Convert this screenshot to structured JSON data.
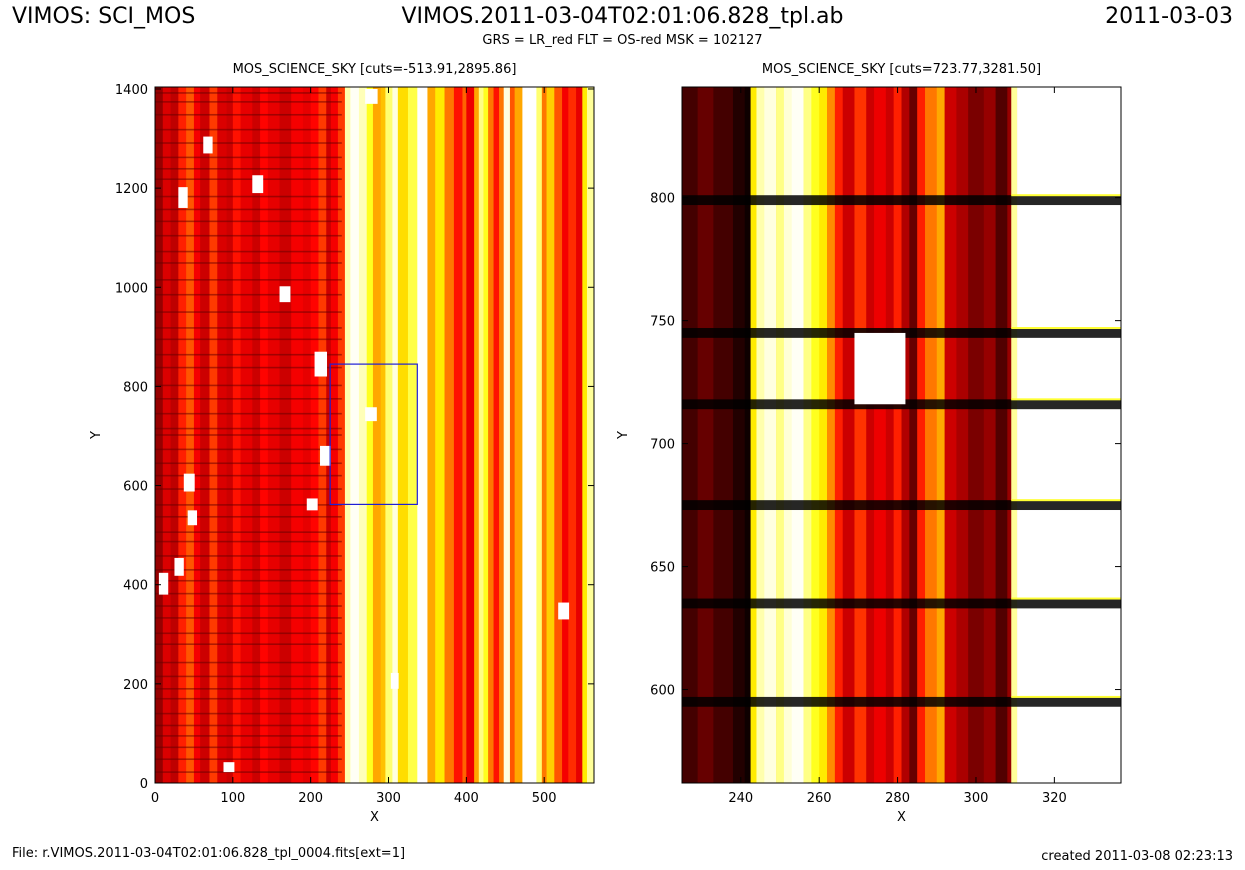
{
  "header": {
    "left": "VIMOS: SCI_MOS",
    "center": "VIMOS.2011-03-04T02:01:06.828_tpl.ab",
    "right": "2011-03-03",
    "subtitle": "GRS = LR_red FLT = OS-red MSK = 102127"
  },
  "footer": {
    "left": "File: r.VIMOS.2011-03-04T02:01:06.828_tpl_0004.fits[ext=1]",
    "right": "created 2011-03-08 02:23:13"
  },
  "chart_data": [
    {
      "type": "heatmap",
      "title": "MOS_SCIENCE_SKY [cuts=-513.91,2895.86]",
      "xlabel": "X",
      "ylabel": "Y",
      "xlim": [
        0,
        564
      ],
      "ylim": [
        0,
        1404
      ],
      "xticks": [
        0,
        100,
        200,
        300,
        400,
        500
      ],
      "yticks": [
        0,
        200,
        400,
        600,
        800,
        1000,
        1200,
        1400
      ],
      "colormap": "hot",
      "cuts": [
        -513.91,
        2895.86
      ],
      "zoom_box": {
        "x": [
          225,
          337
        ],
        "y": [
          562,
          845
        ],
        "color": "#1f1fd6"
      },
      "column_bands": [
        [
          0,
          10,
          0.22
        ],
        [
          10,
          20,
          0.32
        ],
        [
          20,
          30,
          0.28
        ],
        [
          30,
          40,
          0.42
        ],
        [
          40,
          50,
          0.5
        ],
        [
          50,
          58,
          0.36
        ],
        [
          58,
          70,
          0.3
        ],
        [
          70,
          80,
          0.46
        ],
        [
          80,
          92,
          0.32
        ],
        [
          92,
          100,
          0.3
        ],
        [
          100,
          110,
          0.4
        ],
        [
          110,
          125,
          0.34
        ],
        [
          125,
          135,
          0.3
        ],
        [
          135,
          145,
          0.38
        ],
        [
          145,
          160,
          0.34
        ],
        [
          160,
          175,
          0.3
        ],
        [
          175,
          190,
          0.36
        ],
        [
          190,
          200,
          0.34
        ],
        [
          200,
          210,
          0.38
        ],
        [
          210,
          220,
          0.46
        ],
        [
          220,
          226,
          0.3
        ],
        [
          226,
          235,
          0.36
        ],
        [
          235,
          244,
          0.46
        ],
        [
          244,
          251,
          0.92
        ],
        [
          251,
          262,
          0.99
        ],
        [
          262,
          272,
          0.93
        ],
        [
          272,
          280,
          0.78
        ],
        [
          280,
          290,
          0.62
        ],
        [
          290,
          296,
          0.66
        ],
        [
          296,
          305,
          0.86
        ],
        [
          305,
          312,
          0.97
        ],
        [
          312,
          325,
          0.7
        ],
        [
          325,
          337,
          0.82
        ],
        [
          337,
          350,
          1.0
        ],
        [
          350,
          360,
          0.62
        ],
        [
          360,
          372,
          0.72
        ],
        [
          372,
          384,
          0.55
        ],
        [
          384,
          395,
          0.4
        ],
        [
          395,
          400,
          0.52
        ],
        [
          400,
          410,
          0.35
        ],
        [
          410,
          416,
          0.62
        ],
        [
          416,
          422,
          0.88
        ],
        [
          422,
          428,
          0.78
        ],
        [
          428,
          435,
          0.55
        ],
        [
          435,
          442,
          0.4
        ],
        [
          442,
          448,
          0.55
        ],
        [
          448,
          456,
          0.97
        ],
        [
          456,
          462,
          0.5
        ],
        [
          462,
          472,
          0.62
        ],
        [
          472,
          490,
          1.0
        ],
        [
          490,
          497,
          0.86
        ],
        [
          497,
          503,
          0.55
        ],
        [
          503,
          513,
          0.68
        ],
        [
          513,
          523,
          0.5
        ],
        [
          523,
          531,
          0.36
        ],
        [
          531,
          541,
          0.44
        ],
        [
          541,
          549,
          0.34
        ],
        [
          549,
          555,
          0.72
        ],
        [
          555,
          564,
          0.9
        ]
      ],
      "row_lines": [
        22,
        48,
        72,
        95,
        116,
        140,
        170,
        190,
        215,
        243,
        280,
        302,
        333,
        357,
        382,
        408,
        430,
        458,
        487,
        506,
        537,
        561,
        593,
        620,
        645,
        673,
        702,
        715,
        745,
        775,
        802,
        838,
        864,
        895,
        918,
        950,
        985,
        1015,
        1049,
        1072,
        1104,
        1133,
        1157,
        1183,
        1218,
        1239,
        1262,
        1291,
        1318,
        1348,
        1374,
        1392
      ],
      "hot_spots": [
        [
          88,
          22,
          14,
          20
        ],
        [
          5,
          380,
          12,
          44
        ],
        [
          25,
          418,
          12,
          36
        ],
        [
          42,
          520,
          12,
          30
        ],
        [
          37,
          588,
          14,
          36
        ],
        [
          195,
          550,
          14,
          24
        ],
        [
          212,
          640,
          14,
          40
        ],
        [
          205,
          820,
          16,
          50
        ],
        [
          270,
          730,
          15,
          28
        ],
        [
          303,
          190,
          10,
          32
        ],
        [
          125,
          1190,
          14,
          36
        ],
        [
          160,
          970,
          14,
          32
        ],
        [
          30,
          1160,
          12,
          42
        ],
        [
          62,
          1270,
          12,
          34
        ],
        [
          518,
          330,
          14,
          34
        ],
        [
          270,
          1370,
          16,
          30
        ]
      ]
    },
    {
      "type": "heatmap",
      "title": "MOS_SCIENCE_SKY [cuts=723.77,3281.50]",
      "xlabel": "X",
      "ylabel": "Y",
      "xlim": [
        225,
        337
      ],
      "ylim": [
        562,
        845
      ],
      "xticks": [
        240,
        260,
        280,
        300,
        320
      ],
      "yticks": [
        600,
        650,
        700,
        750,
        800
      ],
      "colormap": "hot",
      "cuts": [
        723.77,
        3281.5
      ],
      "column_bands": [
        [
          225,
          229,
          0.1
        ],
        [
          229,
          233,
          0.15
        ],
        [
          233,
          238,
          0.1
        ],
        [
          238,
          241,
          0.05
        ],
        [
          241,
          242.5,
          0.02
        ],
        [
          242.5,
          244,
          0.72
        ],
        [
          244,
          246,
          0.92
        ],
        [
          246,
          249,
          0.97
        ],
        [
          249,
          251,
          0.88
        ],
        [
          251,
          253,
          0.96
        ],
        [
          253,
          256,
          0.99
        ],
        [
          256,
          258,
          0.88
        ],
        [
          258,
          260,
          0.78
        ],
        [
          260,
          262,
          0.72
        ],
        [
          262,
          264,
          0.58
        ],
        [
          264,
          266,
          0.42
        ],
        [
          266,
          269,
          0.3
        ],
        [
          269,
          272,
          0.45
        ],
        [
          272,
          274,
          0.3
        ],
        [
          274,
          277,
          0.35
        ],
        [
          277,
          279,
          0.3
        ],
        [
          279,
          281,
          0.42
        ],
        [
          281,
          283,
          0.26
        ],
        [
          283,
          285,
          0.15
        ],
        [
          285,
          287,
          0.42
        ],
        [
          287,
          290,
          0.55
        ],
        [
          290,
          292,
          0.62
        ],
        [
          292,
          295,
          0.3
        ],
        [
          295,
          298,
          0.25
        ],
        [
          298,
          302,
          0.18
        ],
        [
          302,
          305,
          0.22
        ],
        [
          305,
          308,
          0.12
        ],
        [
          308,
          309,
          0.22
        ],
        [
          309,
          310.5,
          0.9
        ],
        [
          310.5,
          313,
          1.0
        ],
        [
          313,
          337,
          1.0
        ]
      ],
      "row_bands": [
        [
          593,
          597,
          0.0
        ],
        [
          633,
          637,
          0.0
        ],
        [
          673,
          677,
          0.0
        ],
        [
          714,
          718,
          0.0
        ],
        [
          743,
          747,
          0.0
        ],
        [
          797,
          801,
          0.0
        ]
      ],
      "hot_spots": [
        [
          269,
          716,
          13,
          29
        ]
      ]
    }
  ]
}
